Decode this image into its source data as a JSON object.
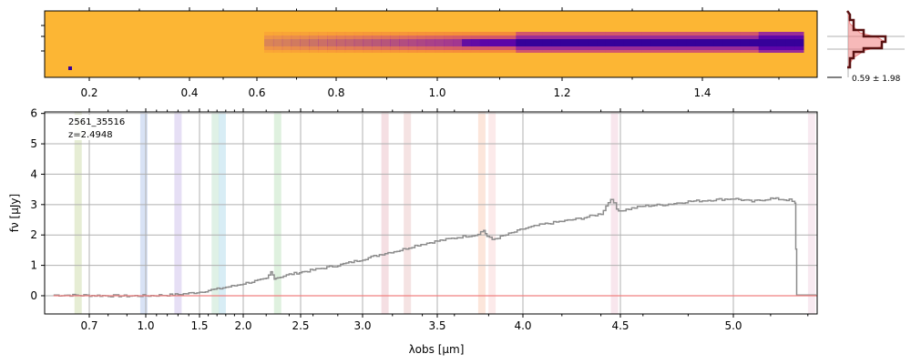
{
  "spectrum2d": {
    "top_ticks": [
      {
        "label": "0.2",
        "um": 0.2
      },
      {
        "label": "0.4",
        "um": 0.4
      },
      {
        "label": "0.6",
        "um": 0.6
      },
      {
        "label": "0.8",
        "um": 0.8
      },
      {
        "label": "1.0",
        "um": 1.0
      },
      {
        "label": "1.2",
        "um": 1.2
      },
      {
        "label": "1.4",
        "um": 1.4
      }
    ],
    "colormap": [
      "#fcb634",
      "#f58b3a",
      "#d3576a",
      "#9a2c98",
      "#5d05a8",
      "#36019a"
    ]
  },
  "profile": {
    "label": "0.59 ± 1.98",
    "data_color": "#5a1212",
    "model_color": "#f08080"
  },
  "chart_data": {
    "type": "line",
    "object": "2561_35516",
    "redshift": "z=2.4948",
    "xlabel": "λobs [μm]",
    "ylabel": "fν [μJy]",
    "xlim": [
      0.6,
      5.45
    ],
    "ylim": [
      -0.6,
      6.05
    ],
    "xscale": "nonlinear (resolution-element scaling)",
    "xticks": [
      0.7,
      1.0,
      1.5,
      2.0,
      2.5,
      3.0,
      3.5,
      4.0,
      4.5,
      5.0
    ],
    "xtick_labels": [
      "0.7",
      "1.0",
      "1.5",
      "2.0",
      "2.5",
      "3.0",
      "3.5",
      "4.0",
      "4.5",
      "5.0"
    ],
    "yticks": [
      0,
      1,
      2,
      3,
      4,
      5,
      6
    ],
    "ytick_labels": [
      "0",
      "1",
      "2",
      "3",
      "4",
      "5",
      "6"
    ],
    "grid": true,
    "series": [
      {
        "color": "#8c8c8c",
        "x": [
          0.62,
          0.7,
          0.8,
          0.9,
          1.0,
          1.1,
          1.2,
          1.3,
          1.4,
          1.5,
          1.6,
          1.7,
          1.8,
          1.9,
          2.0,
          2.1,
          2.2,
          2.24,
          2.27,
          2.3,
          2.4,
          2.6,
          2.8,
          3.0,
          3.15,
          3.25,
          3.35,
          3.45,
          3.55,
          3.65,
          3.72,
          3.77,
          3.79,
          3.82,
          3.9,
          4.0,
          4.1,
          4.2,
          4.3,
          4.4,
          4.45,
          4.48,
          4.5,
          4.6,
          4.7,
          4.8,
          4.9,
          5.0,
          5.1,
          5.2,
          5.3,
          5.33,
          5.34
        ],
        "y": [
          0.02,
          0.01,
          0.0,
          -0.01,
          0.0,
          0.01,
          0.02,
          0.04,
          0.08,
          0.12,
          0.18,
          0.22,
          0.28,
          0.33,
          0.4,
          0.48,
          0.55,
          0.78,
          0.58,
          0.6,
          0.7,
          0.85,
          1.0,
          1.2,
          1.4,
          1.5,
          1.65,
          1.75,
          1.85,
          1.95,
          2.0,
          2.15,
          1.95,
          1.85,
          2.0,
          2.2,
          2.35,
          2.45,
          2.55,
          2.7,
          3.2,
          2.85,
          2.8,
          2.95,
          3.0,
          3.1,
          3.15,
          3.2,
          3.1,
          3.2,
          3.15,
          3.05,
          0.02
        ]
      },
      {
        "color": "#f08080",
        "x": [
          0.62,
          5.45
        ],
        "y": [
          0.0,
          0.0
        ]
      }
    ],
    "line_markers": [
      {
        "um": 0.675,
        "color": "#c8d8a0"
      },
      {
        "um": 0.99,
        "color": "#a8bfe8"
      },
      {
        "um": 1.3,
        "color": "#c8b8e8"
      },
      {
        "um": 1.68,
        "color": "#b8e0c8"
      },
      {
        "um": 1.76,
        "color": "#a8d8e8"
      },
      {
        "um": 2.3,
        "color": "#b8e0b8"
      },
      {
        "um": 3.15,
        "color": "#e8b8c0"
      },
      {
        "um": 3.3,
        "color": "#e8c0c0"
      },
      {
        "um": 3.76,
        "color": "#f8c8b0"
      },
      {
        "um": 3.82,
        "color": "#f8d0d0"
      },
      {
        "um": 4.47,
        "color": "#f0c8d8"
      },
      {
        "um": 5.42,
        "color": "#f0d0e0"
      }
    ]
  }
}
